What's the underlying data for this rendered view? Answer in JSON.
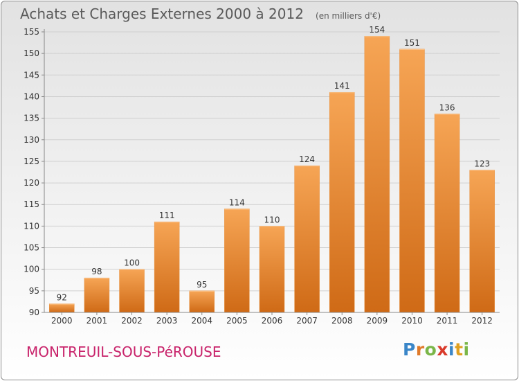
{
  "chart_data": {
    "type": "bar",
    "title": "Achats et Charges Externes 2000 à 2012",
    "subtitle": "(en milliers d'€)",
    "categories": [
      "2000",
      "2001",
      "2002",
      "2003",
      "2004",
      "2005",
      "2006",
      "2007",
      "2008",
      "2009",
      "2010",
      "2011",
      "2012"
    ],
    "values": [
      92,
      98,
      100,
      111,
      95,
      114,
      110,
      124,
      141,
      154,
      151,
      136,
      123
    ],
    "ylim": [
      90,
      155
    ],
    "yticks": [
      90,
      95,
      100,
      105,
      110,
      115,
      120,
      125,
      130,
      135,
      140,
      145,
      150,
      155
    ],
    "xlabel": "",
    "ylabel": "",
    "grid": true,
    "bar_color": "#f08f35"
  },
  "footer": {
    "location": "MONTREUIL-SOUS-PéROUSE",
    "logo": [
      {
        "char": "P",
        "color": "#3a86c8"
      },
      {
        "char": "r",
        "color": "#e07a2a"
      },
      {
        "char": "o",
        "color": "#7ab648"
      },
      {
        "char": "x",
        "color": "#d93a2b"
      },
      {
        "char": "i",
        "color": "#3a86c8"
      },
      {
        "char": "t",
        "color": "#e0a020"
      },
      {
        "char": "i",
        "color": "#7ab648"
      }
    ]
  }
}
